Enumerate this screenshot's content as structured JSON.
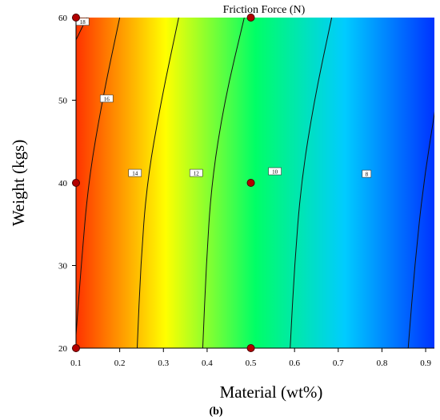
{
  "chart_data": {
    "type": "heatmap",
    "subtype": "contour",
    "title": "Friction Force (N)",
    "xlabel": "Material (wt%)",
    "ylabel": "Weight (kgs)",
    "caption": "(b)",
    "xlim": [
      0.1,
      0.92
    ],
    "ylim": [
      20,
      60
    ],
    "x_ticks": [
      0.1,
      0.2,
      0.3,
      0.4,
      0.5,
      0.6,
      0.7,
      0.8,
      0.9
    ],
    "x_tick_labels": [
      "0.1",
      "0.2",
      "0.3",
      "0.4",
      "0.5",
      "0.6",
      "0.7",
      "0.8",
      "0.9"
    ],
    "y_ticks": [
      20,
      30,
      40,
      50,
      60
    ],
    "y_tick_labels": [
      "20",
      "30",
      "40",
      "50",
      "60"
    ],
    "grid": false,
    "colormap": [
      "#0033ff",
      "#00ccff",
      "#00ff66",
      "#ffff00",
      "#ff3300"
    ],
    "value_range": [
      4,
      20
    ],
    "contours": [
      {
        "level": 18,
        "label": "18",
        "points": [
          [
            0.1,
            57.3
          ],
          [
            0.125,
            60
          ]
        ],
        "label_at": [
          0.115,
          59.5
        ]
      },
      {
        "level": 16,
        "label": "16",
        "points": [
          [
            0.1,
            21.6
          ],
          [
            0.112,
            30
          ],
          [
            0.128,
            40
          ],
          [
            0.16,
            50
          ],
          [
            0.2,
            60
          ]
        ],
        "label_at": [
          0.17,
          50.2
        ]
      },
      {
        "level": 14,
        "label": "14",
        "points": [
          [
            0.24,
            20
          ],
          [
            0.248,
            30
          ],
          [
            0.262,
            40
          ],
          [
            0.295,
            50
          ],
          [
            0.335,
            60
          ]
        ],
        "label_at": [
          0.235,
          41.2
        ]
      },
      {
        "level": 12,
        "label": "12",
        "points": [
          [
            0.39,
            20
          ],
          [
            0.398,
            30
          ],
          [
            0.41,
            40
          ],
          [
            0.44,
            50
          ],
          [
            0.485,
            60
          ]
        ],
        "label_at": [
          0.375,
          41.2
        ]
      },
      {
        "level": 10,
        "label": "10",
        "points": [
          [
            0.59,
            20
          ],
          [
            0.6,
            30
          ],
          [
            0.615,
            40
          ],
          [
            0.645,
            50
          ],
          [
            0.685,
            60
          ]
        ],
        "label_at": [
          0.555,
          41.4
        ]
      },
      {
        "level": 8,
        "label": "8",
        "points": [
          [
            0.86,
            20
          ],
          [
            0.875,
            30
          ],
          [
            0.895,
            40
          ],
          [
            0.925,
            50
          ]
        ],
        "label_at": [
          0.765,
          41.1
        ]
      }
    ],
    "design_points": [
      {
        "x": 0.1,
        "y": 60
      },
      {
        "x": 0.5,
        "y": 60
      },
      {
        "x": 0.1,
        "y": 40
      },
      {
        "x": 0.5,
        "y": 40
      },
      {
        "x": 0.1,
        "y": 20
      },
      {
        "x": 0.5,
        "y": 20
      }
    ],
    "colors": {
      "point_fill": "#b30000",
      "point_stroke": "#4a0000",
      "contour": "#111111",
      "axis": "#000000"
    }
  }
}
